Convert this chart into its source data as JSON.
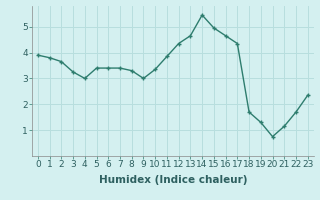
{
  "x": [
    0,
    1,
    2,
    3,
    4,
    5,
    6,
    7,
    8,
    9,
    10,
    11,
    12,
    13,
    14,
    15,
    16,
    17,
    18,
    19,
    20,
    21,
    22,
    23
  ],
  "y": [
    3.9,
    3.8,
    3.65,
    3.25,
    3.0,
    3.4,
    3.4,
    3.4,
    3.3,
    3.0,
    3.35,
    3.85,
    4.35,
    4.65,
    5.45,
    4.95,
    4.65,
    4.35,
    1.7,
    1.3,
    0.75,
    1.15,
    1.7,
    2.35
  ],
  "line_color": "#2e7d6e",
  "marker": "+",
  "bg_color": "#d4f0f0",
  "grid_color": "#b8dede",
  "xlabel": "Humidex (Indice chaleur)",
  "xlabel_fontsize": 7.5,
  "xlabel_fontweight": "bold",
  "xlim": [
    -0.5,
    23.5
  ],
  "ylim": [
    0.0,
    5.8
  ],
  "yticks": [
    1,
    2,
    3,
    4,
    5
  ],
  "xticks": [
    0,
    1,
    2,
    3,
    4,
    5,
    6,
    7,
    8,
    9,
    10,
    11,
    12,
    13,
    14,
    15,
    16,
    17,
    18,
    19,
    20,
    21,
    22,
    23
  ],
  "tick_fontsize": 6.5,
  "linewidth": 1.0,
  "markersize": 3.5,
  "markeredgewidth": 1.0
}
